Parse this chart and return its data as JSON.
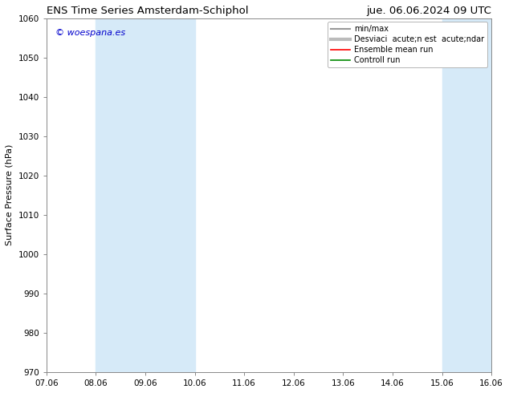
{
  "title_left": "ENS Time Series Amsterdam-Schiphol",
  "title_right": "jue. 06.06.2024 09 UTC",
  "ylabel": "Surface Pressure (hPa)",
  "ylim": [
    970,
    1060
  ],
  "yticks": [
    970,
    980,
    990,
    1000,
    1010,
    1020,
    1030,
    1040,
    1050,
    1060
  ],
  "xtick_labels": [
    "07.06",
    "08.06",
    "09.06",
    "10.06",
    "11.06",
    "12.06",
    "13.06",
    "14.06",
    "15.06",
    "16.06"
  ],
  "x_values": [
    0,
    1,
    2,
    3,
    4,
    5,
    6,
    7,
    8,
    9
  ],
  "xlim": [
    0,
    9
  ],
  "shaded_bands": [
    {
      "x_start": 1,
      "x_end": 3,
      "color": "#d6eaf8"
    },
    {
      "x_start": 8,
      "x_end": 9,
      "color": "#d6eaf8"
    }
  ],
  "watermark_text": "© woespana.es",
  "watermark_color": "#0000cc",
  "background_color": "#ffffff",
  "plot_bg_color": "#ffffff",
  "legend_entries": [
    {
      "label": "min/max",
      "color": "#999999",
      "lw": 1.5
    },
    {
      "label": "Desviaci  acute;n est  acute;ndar",
      "color": "#bbbbbb",
      "lw": 3
    },
    {
      "label": "Ensemble mean run",
      "color": "#ff0000",
      "lw": 1.2
    },
    {
      "label": "Controll run",
      "color": "#008800",
      "lw": 1.2
    }
  ],
  "title_fontsize": 9.5,
  "axis_fontsize": 8,
  "tick_fontsize": 7.5,
  "watermark_fontsize": 8,
  "legend_fontsize": 7
}
